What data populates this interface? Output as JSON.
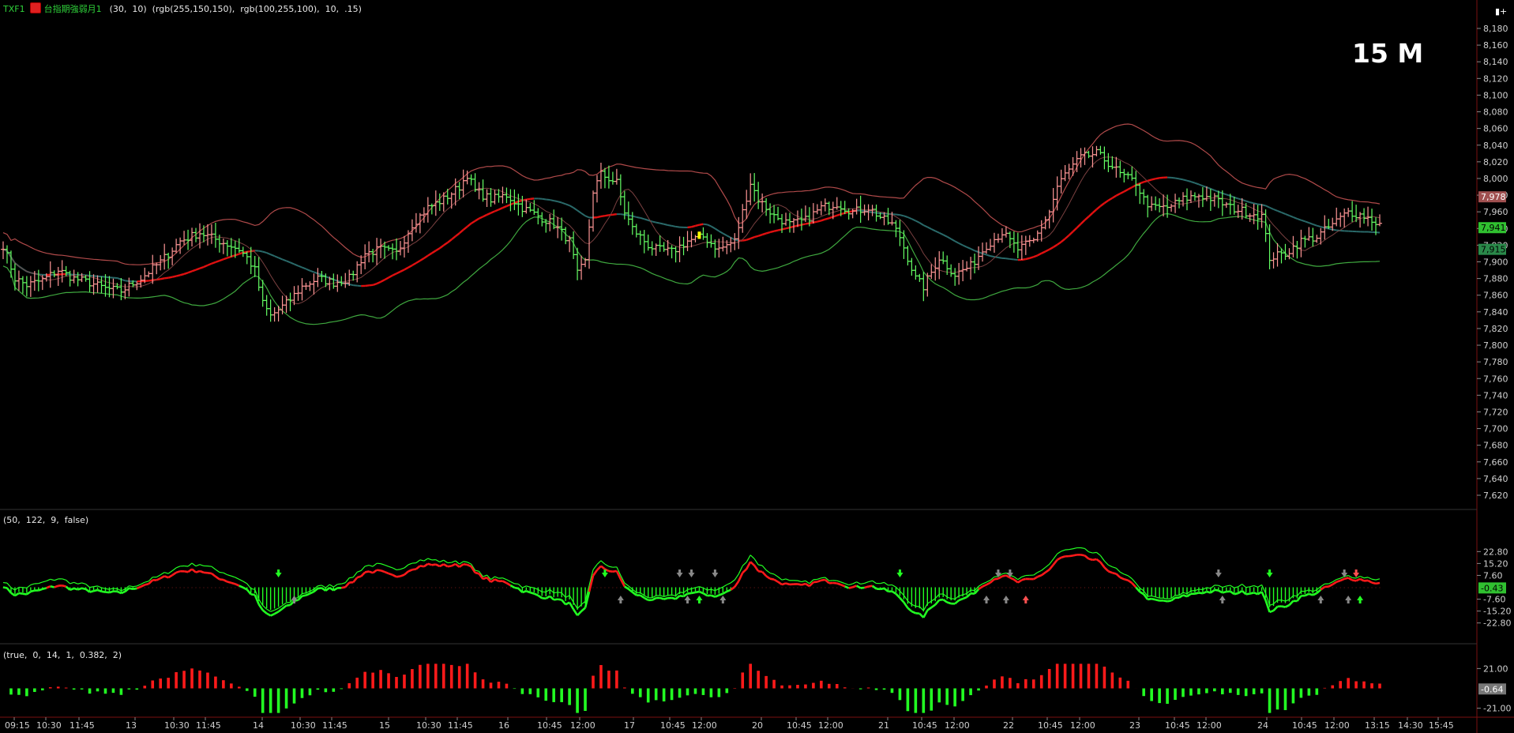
{
  "header": {
    "symbol": "TXF1",
    "indicator_name": "台指期強弱月1",
    "params": "(30,  10)  (rgb(255,150,150),  rgb(100,255,100),  10,  .15)",
    "corner_button": "▮+"
  },
  "interval_label": "15 M",
  "panel2_params": "(50,  122,  9,  false)",
  "panel3_params": "(true,  0,  14,  1,  0.382,  2)",
  "colors": {
    "background": "#000000",
    "bull": "#ff9696",
    "bear": "#64ff64",
    "upper_band": "#b04a4a",
    "lower_band": "#3fa83f",
    "mid_red": "#e01010",
    "mid_teal": "#2a6a6a",
    "osc_red": "#ff1a1a",
    "osc_green": "#22ff22",
    "highlight": "#ffff00",
    "axis_text": "#d0d0d0",
    "label_red_bg": "#a05050",
    "label_green_bg": "#30c030"
  },
  "chart_data": [
    {
      "panel": "price",
      "type": "ohlc",
      "y_axis_ticks": [
        "8,180",
        "8,160",
        "8,140",
        "8,120",
        "8,100",
        "8,080",
        "8,060",
        "8,040",
        "8,020",
        "8,000",
        "7,980",
        "7,960",
        "7,940",
        "7,920",
        "7,900",
        "7,880",
        "7,860",
        "7,840",
        "7,820",
        "7,800",
        "7,780",
        "7,760",
        "7,740",
        "7,720",
        "7,700",
        "7,680",
        "7,660",
        "7,640",
        "7,620"
      ],
      "ylim": [
        7610,
        8190
      ],
      "price_labels": {
        "upper": "7,978",
        "last": "7,941",
        "lower": "7,915"
      },
      "close_path": [
        [
          0,
          7920
        ],
        [
          3,
          7880
        ],
        [
          6,
          7872
        ],
        [
          10,
          7878
        ],
        [
          14,
          7890
        ],
        [
          18,
          7880
        ],
        [
          22,
          7875
        ],
        [
          26,
          7868
        ],
        [
          30,
          7865
        ],
        [
          35,
          7880
        ],
        [
          40,
          7900
        ],
        [
          45,
          7925
        ],
        [
          50,
          7935
        ],
        [
          55,
          7925
        ],
        [
          60,
          7915
        ],
        [
          62,
          7905
        ],
        [
          64,
          7890
        ],
        [
          66,
          7850
        ],
        [
          68,
          7835
        ],
        [
          72,
          7850
        ],
        [
          76,
          7870
        ],
        [
          80,
          7880
        ],
        [
          84,
          7875
        ],
        [
          88,
          7880
        ],
        [
          92,
          7910
        ],
        [
          96,
          7915
        ],
        [
          100,
          7910
        ],
        [
          104,
          7945
        ],
        [
          108,
          7965
        ],
        [
          112,
          7975
        ],
        [
          116,
          7990
        ],
        [
          118,
          8005
        ],
        [
          120,
          7985
        ],
        [
          124,
          7975
        ],
        [
          128,
          7980
        ],
        [
          132,
          7965
        ],
        [
          136,
          7955
        ],
        [
          140,
          7945
        ],
        [
          144,
          7925
        ],
        [
          146,
          7885
        ],
        [
          148,
          7900
        ],
        [
          150,
          7985
        ],
        [
          152,
          8005
        ],
        [
          156,
          7995
        ],
        [
          158,
          7960
        ],
        [
          160,
          7940
        ],
        [
          164,
          7920
        ],
        [
          166,
          7915
        ],
        [
          170,
          7912
        ],
        [
          174,
          7925
        ],
        [
          178,
          7930
        ],
        [
          182,
          7915
        ],
        [
          186,
          7925
        ],
        [
          190,
          7995
        ],
        [
          192,
          7975
        ],
        [
          196,
          7955
        ],
        [
          200,
          7945
        ],
        [
          204,
          7950
        ],
        [
          208,
          7965
        ],
        [
          212,
          7970
        ],
        [
          216,
          7960
        ],
        [
          220,
          7965
        ],
        [
          224,
          7950
        ],
        [
          226,
          7945
        ],
        [
          228,
          7930
        ],
        [
          230,
          7905
        ],
        [
          232,
          7880
        ],
        [
          234,
          7870
        ],
        [
          238,
          7905
        ],
        [
          242,
          7885
        ],
        [
          246,
          7895
        ],
        [
          250,
          7920
        ],
        [
          254,
          7935
        ],
        [
          258,
          7915
        ],
        [
          262,
          7925
        ],
        [
          266,
          7960
        ],
        [
          268,
          7990
        ],
        [
          270,
          8005
        ],
        [
          274,
          8025
        ],
        [
          278,
          8030
        ],
        [
          282,
          8015
        ],
        [
          284,
          8005
        ],
        [
          288,
          7995
        ],
        [
          290,
          7975
        ],
        [
          292,
          7965
        ],
        [
          296,
          7965
        ],
        [
          300,
          7975
        ],
        [
          304,
          7980
        ],
        [
          308,
          7975
        ],
        [
          312,
          7965
        ],
        [
          316,
          7960
        ],
        [
          320,
          7955
        ],
        [
          322,
          7905
        ],
        [
          326,
          7910
        ],
        [
          330,
          7925
        ],
        [
          334,
          7930
        ],
        [
          338,
          7945
        ],
        [
          342,
          7960
        ],
        [
          346,
          7955
        ],
        [
          350,
          7945
        ]
      ],
      "highlight_bar_index": 177
    },
    {
      "panel": "oscillator_1",
      "type": "line",
      "y_axis_ticks": [
        "22.80",
        "15.20",
        "7.60",
        "-7.60",
        "-15.20",
        "-22.80"
      ],
      "ylim": [
        -27,
        27
      ],
      "last_label": "-0.43"
    },
    {
      "panel": "oscillator_2",
      "type": "bar",
      "y_axis_ticks": [
        "21.00",
        "-21.00"
      ],
      "ylim": [
        -28,
        28
      ],
      "last_label": "-0.64"
    }
  ],
  "x_axis_ticks": [
    "09:15",
    "10:30",
    "11:45",
    "13",
    "10:30",
    "11:45",
    "14",
    "10:30",
    "11:45",
    "15",
    "10:30",
    "11:45",
    "16",
    "10:45",
    "12:00",
    "17",
    "10:45",
    "12:00",
    "20",
    "10:45",
    "12:00",
    "21",
    "10:45",
    "12:00",
    "22",
    "10:45",
    "12:00",
    "23",
    "10:45",
    "12:00",
    "24",
    "10:45",
    "12:00",
    "13:15",
    "14:30",
    "15:45"
  ]
}
